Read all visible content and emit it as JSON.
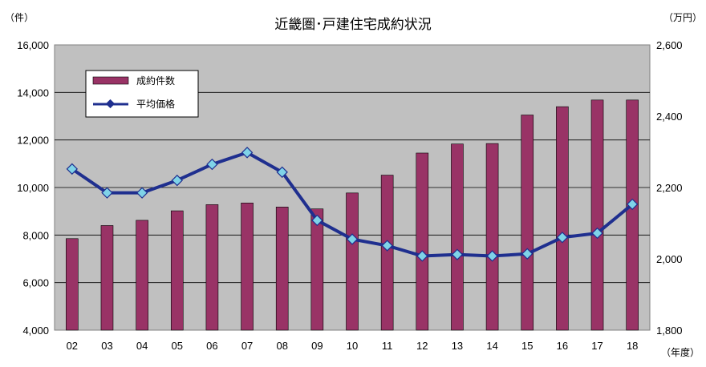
{
  "chart_data": {
    "type": "bar+line",
    "title": "近畿圏･戸建住宅成約状況",
    "left_unit": "（件）",
    "right_unit": "（万円）",
    "x_unit": "（年度）",
    "categories": [
      "02",
      "03",
      "04",
      "05",
      "06",
      "07",
      "08",
      "09",
      "10",
      "11",
      "12",
      "13",
      "14",
      "15",
      "16",
      "17",
      "18"
    ],
    "y_left": {
      "min": 4000,
      "max": 16000,
      "step": 2000,
      "ticks": [
        "4,000",
        "6,000",
        "8,000",
        "10,000",
        "12,000",
        "14,000",
        "16,000"
      ]
    },
    "y_right": {
      "min": 1800,
      "max": 2600,
      "step": 200,
      "ticks": [
        "1,800",
        "2,000",
        "2,200",
        "2,400",
        "2,600"
      ]
    },
    "legend_position": "top-left",
    "grid": "horizontal",
    "series": [
      {
        "name": "成約件数",
        "type": "bar",
        "axis": "left",
        "color": "#993366",
        "values": [
          7850,
          8400,
          8620,
          9020,
          9280,
          9350,
          9180,
          9100,
          9770,
          10520,
          11450,
          11830,
          11850,
          13050,
          13400,
          13680,
          13680
        ]
      },
      {
        "name": "平均価格",
        "type": "line",
        "axis": "right",
        "color": "#1f2f8f",
        "marker_color": "#7fd3e8",
        "values": [
          2252,
          2185,
          2185,
          2220,
          2265,
          2298,
          2243,
          2108,
          2055,
          2037,
          2008,
          2012,
          2008,
          2014,
          2060,
          2072,
          2153
        ]
      }
    ]
  }
}
